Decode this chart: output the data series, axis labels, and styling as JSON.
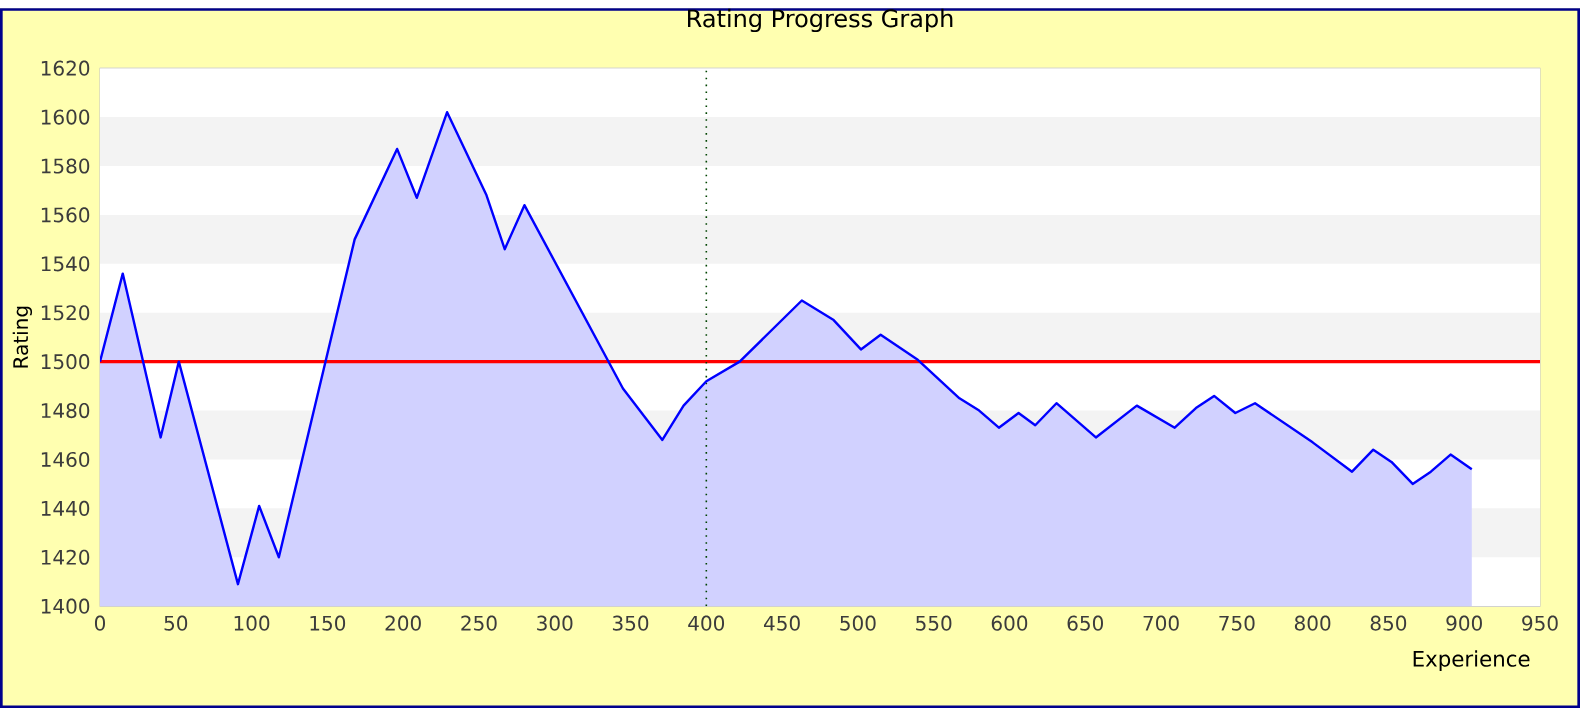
{
  "chart_data": {
    "type": "area",
    "title": "Rating Progress Graph",
    "xlabel": "Experience",
    "ylabel": "Rating",
    "series": [
      {
        "color": "#0000ff",
        "x": [
          0,
          15,
          40,
          52,
          91,
          105,
          118,
          168,
          196,
          209,
          229,
          255,
          267,
          280,
          345,
          371,
          385,
          400,
          422,
          463,
          484,
          502,
          515,
          539,
          567,
          580,
          593,
          606,
          617,
          631,
          657,
          684,
          709,
          723,
          735,
          749,
          762,
          800,
          826,
          840,
          852,
          866,
          878,
          891,
          905
        ],
        "values": [
          1500,
          1536,
          1469,
          1500,
          1409,
          1441,
          1420,
          1550,
          1587,
          1567,
          1602,
          1568,
          1546,
          1564,
          1489,
          1468,
          1482,
          1492,
          1500,
          1525,
          1517,
          1505,
          1511,
          1501,
          1485,
          1480,
          1473,
          1479,
          1474,
          1483,
          1469,
          1482,
          1473,
          1481,
          1486,
          1479,
          1483,
          1467,
          1455,
          1464,
          1459,
          1450,
          1455,
          1462,
          1456
        ]
      }
    ],
    "xlim": [
      0,
      950
    ],
    "ylim": [
      1400,
      1620
    ],
    "xticks": [
      0,
      50,
      100,
      150,
      200,
      250,
      300,
      350,
      400,
      450,
      500,
      550,
      600,
      650,
      700,
      750,
      800,
      850,
      900,
      950
    ],
    "yticks": [
      1400,
      1420,
      1440,
      1460,
      1480,
      1500,
      1520,
      1540,
      1560,
      1580,
      1600,
      1620
    ],
    "grid": "y",
    "ref_lines": [
      {
        "axis": "y",
        "value": 1500,
        "color": "#ff0000",
        "line_style": "solid"
      },
      {
        "axis": "x",
        "value": 400,
        "color": "#004400",
        "line_style": "dotted"
      }
    ]
  }
}
